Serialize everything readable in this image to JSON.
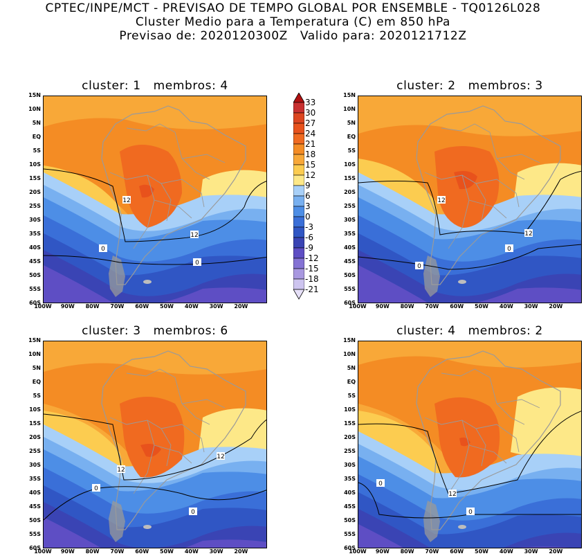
{
  "header": {
    "line1": "CPTEC/INPE/MCT - PREVISAO DE TEMPO GLOBAL POR ENSEMBLE - TQ0126L028",
    "line2": "Cluster Medio para a Temperatura (C) em 850 hPa",
    "line3": "Previsao de: 2020120300Z   Valido para: 2020121712Z"
  },
  "lat_labels": [
    "15N",
    "10N",
    "5N",
    "EQ",
    "5S",
    "10S",
    "15S",
    "20S",
    "25S",
    "30S",
    "35S",
    "40S",
    "45S",
    "50S",
    "55S",
    "60S"
  ],
  "lon_labels": [
    "100W",
    "90W",
    "80W",
    "70W",
    "60W",
    "50W",
    "40W",
    "30W",
    "20W"
  ],
  "colorbar": {
    "labels": [
      "33",
      "30",
      "27",
      "24",
      "21",
      "18",
      "15",
      "12",
      "9",
      "6",
      "3",
      "0",
      "-3",
      "-6",
      "-9",
      "-12",
      "-15",
      "-18",
      "-21"
    ],
    "colors": [
      "#b01010",
      "#c83030",
      "#dc4520",
      "#e8521c",
      "#f06a20",
      "#f48c24",
      "#f8a838",
      "#fccc50",
      "#fde888",
      "#a8d0f8",
      "#78b0f0",
      "#4d8ee6",
      "#3a6fd8",
      "#3056c4",
      "#3a44b4",
      "#5e4ec4",
      "#8472d4",
      "#a898e0",
      "#cdc4ef",
      "#e6e0f8"
    ]
  },
  "panels": [
    {
      "title": "cluster: 1   membros: 4",
      "contour_labels": [
        "12",
        "12",
        "0",
        "0"
      ]
    },
    {
      "title": "cluster: 2   membros: 3",
      "contour_labels": [
        "12",
        "12",
        "0",
        "0"
      ]
    },
    {
      "title": "cluster: 3   membros: 6",
      "contour_labels": [
        "12",
        "12",
        "0",
        "0"
      ]
    },
    {
      "title": "cluster: 4   membros: 2",
      "contour_labels": [
        "0",
        "12",
        "0"
      ]
    }
  ]
}
